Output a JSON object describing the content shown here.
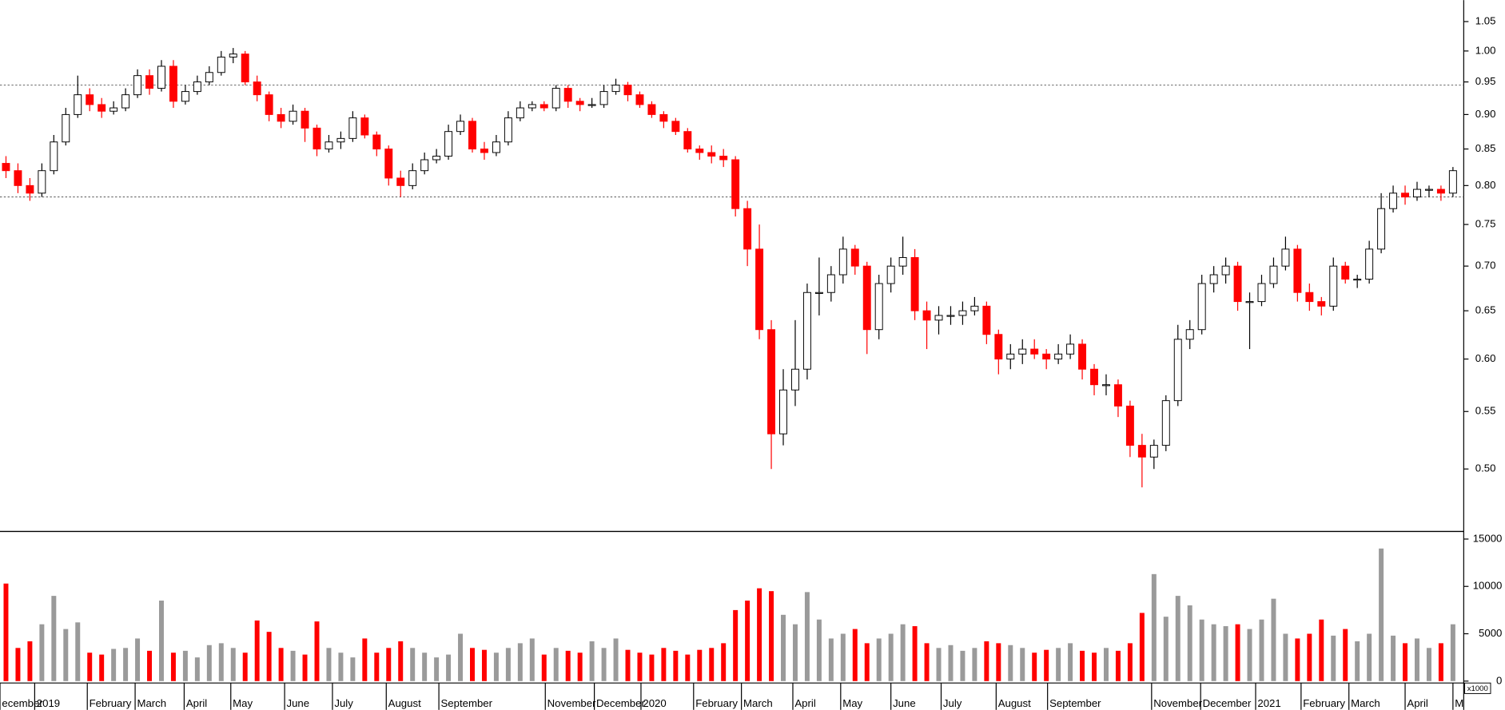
{
  "chart_data": {
    "type": "candlestick",
    "open": [
      0.83,
      0.82,
      0.8,
      0.79,
      0.82,
      0.86,
      0.9,
      0.93,
      0.915,
      0.905,
      0.91,
      0.93,
      0.96,
      0.94,
      0.975,
      0.92,
      0.935,
      0.95,
      0.965,
      0.99,
      0.995,
      0.95,
      0.93,
      0.9,
      0.89,
      0.905,
      0.88,
      0.85,
      0.86,
      0.865,
      0.895,
      0.87,
      0.85,
      0.81,
      0.8,
      0.82,
      0.835,
      0.84,
      0.875,
      0.89,
      0.85,
      0.845,
      0.86,
      0.895,
      0.91,
      0.915,
      0.91,
      0.94,
      0.92,
      0.915,
      0.915,
      0.935,
      0.945,
      0.93,
      0.915,
      0.9,
      0.89,
      0.875,
      0.85,
      0.845,
      0.84,
      0.835,
      0.77,
      0.72,
      0.63,
      0.53,
      0.57,
      0.59,
      0.67,
      0.67,
      0.69,
      0.72,
      0.7,
      0.63,
      0.68,
      0.7,
      0.71,
      0.65,
      0.64,
      0.645,
      0.645,
      0.65,
      0.655,
      0.625,
      0.6,
      0.605,
      0.61,
      0.605,
      0.6,
      0.605,
      0.615,
      0.59,
      0.575,
      0.575,
      0.555,
      0.52,
      0.51,
      0.52,
      0.56,
      0.62,
      0.63,
      0.68,
      0.69,
      0.7,
      0.66,
      0.66,
      0.68,
      0.7,
      0.72,
      0.67,
      0.66,
      0.655,
      0.7,
      0.685,
      0.685,
      0.72,
      0.77,
      0.79,
      0.785,
      0.795,
      0.795,
      0.79
    ],
    "high": [
      0.84,
      0.83,
      0.81,
      0.83,
      0.87,
      0.91,
      0.96,
      0.94,
      0.925,
      0.92,
      0.94,
      0.97,
      0.97,
      0.985,
      0.985,
      0.945,
      0.96,
      0.975,
      1.0,
      1.005,
      1.0,
      0.96,
      0.935,
      0.91,
      0.915,
      0.91,
      0.885,
      0.87,
      0.875,
      0.905,
      0.9,
      0.875,
      0.855,
      0.82,
      0.83,
      0.845,
      0.85,
      0.885,
      0.9,
      0.895,
      0.86,
      0.87,
      0.905,
      0.92,
      0.92,
      0.92,
      0.945,
      0.945,
      0.925,
      0.925,
      0.945,
      0.955,
      0.95,
      0.935,
      0.92,
      0.905,
      0.895,
      0.88,
      0.855,
      0.855,
      0.85,
      0.84,
      0.78,
      0.75,
      0.64,
      0.59,
      0.64,
      0.68,
      0.71,
      0.7,
      0.735,
      0.725,
      0.705,
      0.69,
      0.71,
      0.735,
      0.72,
      0.66,
      0.655,
      0.655,
      0.66,
      0.665,
      0.66,
      0.63,
      0.615,
      0.62,
      0.62,
      0.61,
      0.615,
      0.625,
      0.62,
      0.595,
      0.585,
      0.58,
      0.56,
      0.53,
      0.525,
      0.565,
      0.635,
      0.64,
      0.69,
      0.7,
      0.71,
      0.705,
      0.67,
      0.69,
      0.71,
      0.735,
      0.725,
      0.68,
      0.665,
      0.71,
      0.705,
      0.69,
      0.73,
      0.79,
      0.8,
      0.8,
      0.805,
      0.8,
      0.8,
      0.825
    ],
    "low": [
      0.81,
      0.79,
      0.78,
      0.785,
      0.815,
      0.855,
      0.895,
      0.905,
      0.895,
      0.9,
      0.905,
      0.925,
      0.93,
      0.935,
      0.91,
      0.915,
      0.93,
      0.945,
      0.96,
      0.98,
      0.945,
      0.92,
      0.89,
      0.88,
      0.885,
      0.86,
      0.84,
      0.845,
      0.85,
      0.86,
      0.865,
      0.84,
      0.8,
      0.785,
      0.795,
      0.815,
      0.83,
      0.835,
      0.87,
      0.845,
      0.835,
      0.84,
      0.855,
      0.89,
      0.905,
      0.905,
      0.905,
      0.91,
      0.905,
      0.91,
      0.91,
      0.93,
      0.92,
      0.91,
      0.895,
      0.88,
      0.87,
      0.845,
      0.835,
      0.83,
      0.825,
      0.76,
      0.7,
      0.62,
      0.5,
      0.52,
      0.555,
      0.58,
      0.645,
      0.66,
      0.68,
      0.69,
      0.605,
      0.62,
      0.67,
      0.69,
      0.64,
      0.61,
      0.625,
      0.635,
      0.635,
      0.645,
      0.615,
      0.585,
      0.59,
      0.595,
      0.6,
      0.59,
      0.595,
      0.6,
      0.58,
      0.565,
      0.565,
      0.545,
      0.51,
      0.485,
      0.5,
      0.515,
      0.555,
      0.61,
      0.625,
      0.67,
      0.68,
      0.65,
      0.61,
      0.655,
      0.675,
      0.695,
      0.66,
      0.65,
      0.645,
      0.65,
      0.68,
      0.675,
      0.68,
      0.715,
      0.765,
      0.775,
      0.78,
      0.785,
      0.78,
      0.785
    ],
    "close": [
      0.82,
      0.8,
      0.79,
      0.82,
      0.86,
      0.9,
      0.93,
      0.915,
      0.905,
      0.91,
      0.93,
      0.96,
      0.94,
      0.975,
      0.92,
      0.935,
      0.95,
      0.965,
      0.99,
      0.995,
      0.95,
      0.93,
      0.9,
      0.89,
      0.905,
      0.88,
      0.85,
      0.86,
      0.865,
      0.895,
      0.87,
      0.85,
      0.81,
      0.8,
      0.82,
      0.835,
      0.84,
      0.875,
      0.89,
      0.85,
      0.845,
      0.86,
      0.895,
      0.91,
      0.915,
      0.91,
      0.94,
      0.92,
      0.915,
      0.915,
      0.935,
      0.945,
      0.93,
      0.915,
      0.9,
      0.89,
      0.875,
      0.85,
      0.845,
      0.84,
      0.835,
      0.77,
      0.72,
      0.63,
      0.53,
      0.57,
      0.59,
      0.67,
      0.67,
      0.69,
      0.72,
      0.7,
      0.63,
      0.68,
      0.7,
      0.71,
      0.65,
      0.64,
      0.645,
      0.645,
      0.65,
      0.655,
      0.625,
      0.6,
      0.605,
      0.61,
      0.605,
      0.6,
      0.605,
      0.615,
      0.59,
      0.575,
      0.575,
      0.555,
      0.52,
      0.51,
      0.52,
      0.56,
      0.62,
      0.63,
      0.68,
      0.69,
      0.7,
      0.66,
      0.66,
      0.68,
      0.7,
      0.72,
      0.67,
      0.66,
      0.655,
      0.7,
      0.685,
      0.685,
      0.72,
      0.77,
      0.79,
      0.785,
      0.795,
      0.795,
      0.79,
      0.82
    ],
    "volume": [
      10300,
      3500,
      4200,
      6000,
      9000,
      5500,
      6200,
      3000,
      2800,
      3400,
      3500,
      4500,
      3200,
      8500,
      3000,
      3200,
      2500,
      3800,
      4000,
      3500,
      3000,
      6400,
      5200,
      3500,
      3200,
      2800,
      6300,
      3500,
      3000,
      2500,
      4500,
      3000,
      3500,
      4200,
      3500,
      3000,
      2500,
      2800,
      5000,
      3500,
      3300,
      3000,
      3500,
      4000,
      4500,
      2800,
      3500,
      3200,
      3000,
      4200,
      3500,
      4500,
      3300,
      3000,
      2800,
      3500,
      3200,
      2800,
      3300,
      3500,
      4000,
      7500,
      8500,
      9800,
      9500,
      7000,
      6000,
      9400,
      6500,
      4500,
      5000,
      5500,
      4000,
      4500,
      5000,
      6000,
      5800,
      4000,
      3500,
      3800,
      3200,
      3500,
      4200,
      4000,
      3800,
      3500,
      3000,
      3300,
      3500,
      4000,
      3200,
      3000,
      3500,
      3200,
      4000,
      7200,
      11300,
      6800,
      9000,
      8000,
      6500,
      6000,
      5800,
      6000,
      5500,
      6500,
      8700,
      5000,
      4500,
      5000,
      6500,
      4800,
      5500,
      4200,
      5000,
      14000,
      4800,
      4000,
      4500,
      3500,
      4000,
      6000
    ],
    "up_color": "#000000",
    "down_color": "#ff0000",
    "volume_up_color": "#9a9a9a",
    "volume_down_color": "#ff0000",
    "log_scale": true,
    "ylim": [
      0.4515,
      1.088
    ],
    "yticks": [
      {
        "value": 0.5,
        "label": "0.50"
      },
      0.55,
      {
        "value": 0.6,
        "label": "0.60"
      },
      0.65,
      {
        "value": 0.7,
        "label": "0.70"
      },
      0.75,
      {
        "value": 0.8,
        "label": "0.80"
      },
      0.85,
      {
        "value": 0.9,
        "label": "0.90"
      },
      0.95,
      {
        "value": 1.0,
        "label": "1.00"
      },
      1.05
    ],
    "hlines": [
      0.945,
      0.785
    ],
    "y2lim": [
      0,
      15700
    ],
    "y2ticks": [
      0,
      5000,
      10000,
      15000
    ],
    "y2_label": "x1000",
    "xlim": [
      0,
      122
    ],
    "xticks": [
      {
        "value": 0,
        "label": "ecember"
      },
      {
        "value": 2.9,
        "label": "2019"
      },
      {
        "value": 7.3,
        "label": "February"
      },
      {
        "value": 11.3,
        "label": "March"
      },
      {
        "value": 15.4,
        "label": "April"
      },
      {
        "value": 19.3,
        "label": "May"
      },
      {
        "value": 23.8,
        "label": "June"
      },
      {
        "value": 27.8,
        "label": "July"
      },
      {
        "value": 32.3,
        "label": "August"
      },
      {
        "value": 36.7,
        "label": "September"
      },
      {
        "value": 45.6,
        "label": "November"
      },
      {
        "value": 49.7,
        "label": "December"
      },
      {
        "value": 53.6,
        "label": "2020"
      },
      {
        "value": 58.0,
        "label": "February"
      },
      {
        "value": 62.0,
        "label": "March"
      },
      {
        "value": 66.3,
        "label": "April"
      },
      {
        "value": 70.3,
        "label": "May"
      },
      {
        "value": 74.5,
        "label": "June"
      },
      {
        "value": 78.7,
        "label": "July"
      },
      {
        "value": 83.3,
        "label": "August"
      },
      {
        "value": 87.6,
        "label": "September"
      },
      {
        "value": 96.3,
        "label": "November"
      },
      {
        "value": 100.4,
        "label": "December"
      },
      {
        "value": 105.0,
        "label": "2021"
      },
      {
        "value": 108.8,
        "label": "February"
      },
      {
        "value": 112.8,
        "label": "March"
      },
      {
        "value": 117.5,
        "label": "April"
      },
      {
        "value": 121.5,
        "label": "M"
      }
    ]
  }
}
